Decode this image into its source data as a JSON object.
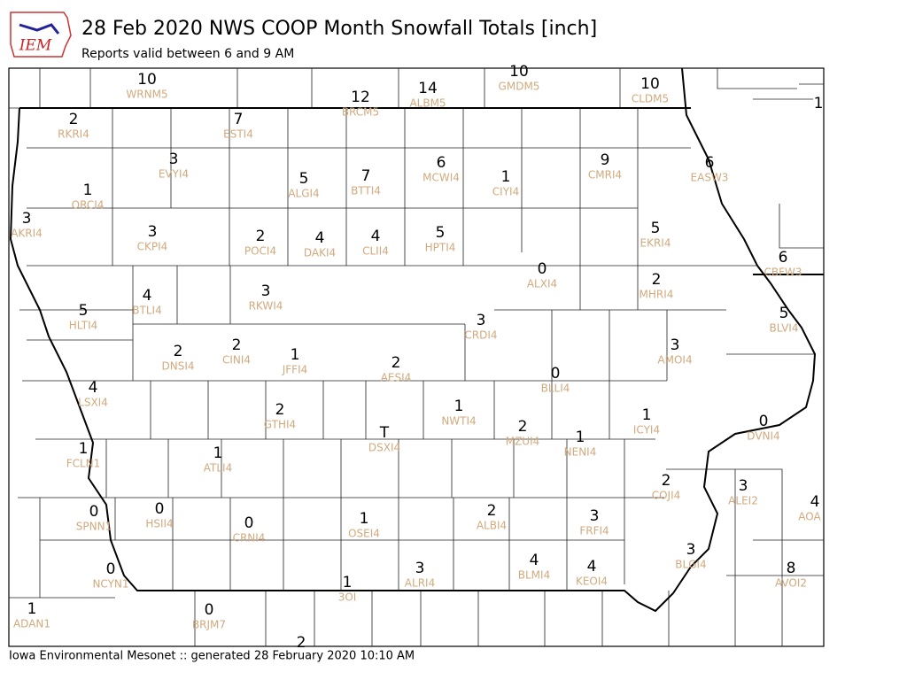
{
  "header": {
    "logo": "IEM",
    "title": "28 Feb 2020 NWS COOP Month Snowfall Totals [inch]",
    "subtitle": "Reports valid between 6 and 9 AM"
  },
  "stations": [
    {
      "value": 10,
      "id": "WRNM5"
    },
    {
      "value": 12,
      "id": "BRCM5"
    },
    {
      "value": 14,
      "id": "ALBM5"
    },
    {
      "value": 10,
      "id": "GMDM5"
    },
    {
      "value": 10,
      "id": "CLDM5"
    },
    {
      "value": 1
    },
    {
      "value": 2,
      "id": "RKRI4"
    },
    {
      "value": 7,
      "id": "ESTI4"
    },
    {
      "value": 3,
      "id": "EVYI4"
    },
    {
      "value": 5,
      "id": "ALGI4"
    },
    {
      "value": 7,
      "id": "BTTI4"
    },
    {
      "value": 6,
      "id": "MCWI4"
    },
    {
      "value": 1,
      "id": "CIYI4"
    },
    {
      "value": 9,
      "id": "CMRI4"
    },
    {
      "value": 6,
      "id": "EASW3"
    },
    {
      "value": 1,
      "id": "ORCI4"
    },
    {
      "value": 3,
      "id": "AKRI4"
    },
    {
      "value": 3,
      "id": "CKPI4"
    },
    {
      "value": 2,
      "id": "POCI4"
    },
    {
      "value": 4,
      "id": "DAKI4"
    },
    {
      "value": 4,
      "id": "CLII4"
    },
    {
      "value": 5,
      "id": "HPTI4"
    },
    {
      "value": 5,
      "id": "EKRI4"
    },
    {
      "value": 6,
      "id": "CBFW3"
    },
    {
      "value": 0,
      "id": "ALXI4"
    },
    {
      "value": 2,
      "id": "MHRI4"
    },
    {
      "value": 4,
      "id": "BTLI4"
    },
    {
      "value": 3,
      "id": "RKWI4"
    },
    {
      "value": 5,
      "id": "HLTI4"
    },
    {
      "value": 3,
      "id": "CRDI4"
    },
    {
      "value": 5,
      "id": "BLVI4"
    },
    {
      "value": 3,
      "id": "AMOI4"
    },
    {
      "value": 2,
      "id": "DNSI4"
    },
    {
      "value": 2,
      "id": "CINI4"
    },
    {
      "value": 1,
      "id": "JFFI4"
    },
    {
      "value": 2,
      "id": "AESI4"
    },
    {
      "value": 0,
      "id": "BLLI4"
    },
    {
      "value": 4,
      "id": "LSXI4"
    },
    {
      "value": 2,
      "id": "GTHI4"
    },
    {
      "value": 1,
      "id": "NWTI4"
    },
    {
      "value": 1,
      "id": "ICYI4"
    },
    {
      "value": 0,
      "id": "DVNI4"
    },
    {
      "value": "T",
      "id": "DSXI4"
    },
    {
      "value": 2,
      "id": "MZUI4"
    },
    {
      "value": 1,
      "id": "NENI4"
    },
    {
      "value": 1,
      "id": "FCLN1"
    },
    {
      "value": 1,
      "id": "ATLI4"
    },
    {
      "value": 2,
      "id": "COJI4"
    },
    {
      "value": 3,
      "id": "ALEI2"
    },
    {
      "value": 4,
      "id": "AOA"
    },
    {
      "value": 0,
      "id": "SPNN1"
    },
    {
      "value": 0,
      "id": "HSII4"
    },
    {
      "value": 0,
      "id": "CRNI4"
    },
    {
      "value": 1,
      "id": "OSEI4"
    },
    {
      "value": 2,
      "id": "ALBI4"
    },
    {
      "value": 3,
      "id": "FRFI4"
    },
    {
      "value": 3,
      "id": "BLGI4"
    },
    {
      "value": 0,
      "id": "NCYN1"
    },
    {
      "value": 4,
      "id": "BLMI4"
    },
    {
      "value": 4,
      "id": "KEOI4"
    },
    {
      "value": 3,
      "id": "ALRI4"
    },
    {
      "value": 8,
      "id": "AVOI2"
    },
    {
      "value": 1,
      "id": "3OI"
    },
    {
      "value": 1,
      "id": "ADAN1"
    },
    {
      "value": 0,
      "id": "BRJM7"
    },
    {
      "value": 2
    }
  ],
  "footer": "Iowa Environmental Mesonet :: generated 28 February 2020 10:10 AM"
}
